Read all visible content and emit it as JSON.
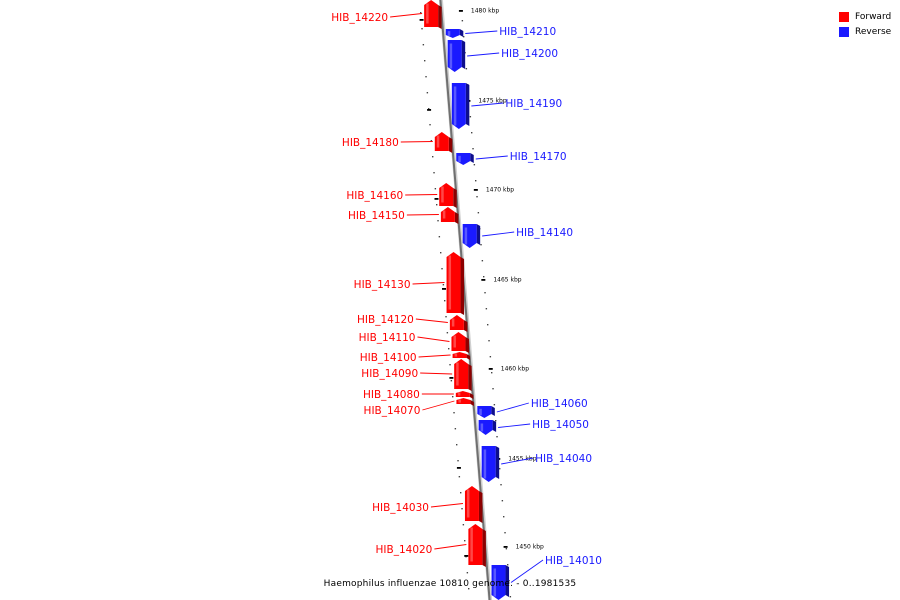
{
  "caption": "Haemophilus influenzae 10810 genome. - 0..1981535",
  "colors": {
    "forward": "#ff0000",
    "reverse": "#1a1aff"
  },
  "legend": [
    {
      "label": "Forward",
      "color": "#ff0000"
    },
    {
      "label": "Reverse",
      "color": "#1a1aff"
    }
  ],
  "scale_labels": [
    "1480 kbp",
    "1475 kbp",
    "1470 kbp",
    "1465 kbp",
    "1460 kbp",
    "1455 kbp",
    "1450 kbp"
  ],
  "genes": [
    {
      "name": "HIB_14220",
      "strand": "forward"
    },
    {
      "name": "HIB_14210",
      "strand": "reverse"
    },
    {
      "name": "HIB_14200",
      "strand": "reverse"
    },
    {
      "name": "HIB_14190",
      "strand": "reverse"
    },
    {
      "name": "HIB_14180",
      "strand": "forward"
    },
    {
      "name": "HIB_14170",
      "strand": "reverse"
    },
    {
      "name": "HIB_14160",
      "strand": "forward"
    },
    {
      "name": "HIB_14150",
      "strand": "forward"
    },
    {
      "name": "HIB_14140",
      "strand": "reverse"
    },
    {
      "name": "HIB_14130",
      "strand": "forward"
    },
    {
      "name": "HIB_14120",
      "strand": "forward"
    },
    {
      "name": "HIB_14110",
      "strand": "forward"
    },
    {
      "name": "HIB_14100",
      "strand": "forward"
    },
    {
      "name": "HIB_14090",
      "strand": "forward"
    },
    {
      "name": "HIB_14080",
      "strand": "forward"
    },
    {
      "name": "HIB_14070",
      "strand": "forward"
    },
    {
      "name": "HIB_14060",
      "strand": "reverse"
    },
    {
      "name": "HIB_14050",
      "strand": "reverse"
    },
    {
      "name": "HIB_14040",
      "strand": "reverse"
    },
    {
      "name": "HIB_14030",
      "strand": "forward"
    },
    {
      "name": "HIB_14020",
      "strand": "forward"
    },
    {
      "name": "HIB_14010",
      "strand": "reverse"
    }
  ]
}
